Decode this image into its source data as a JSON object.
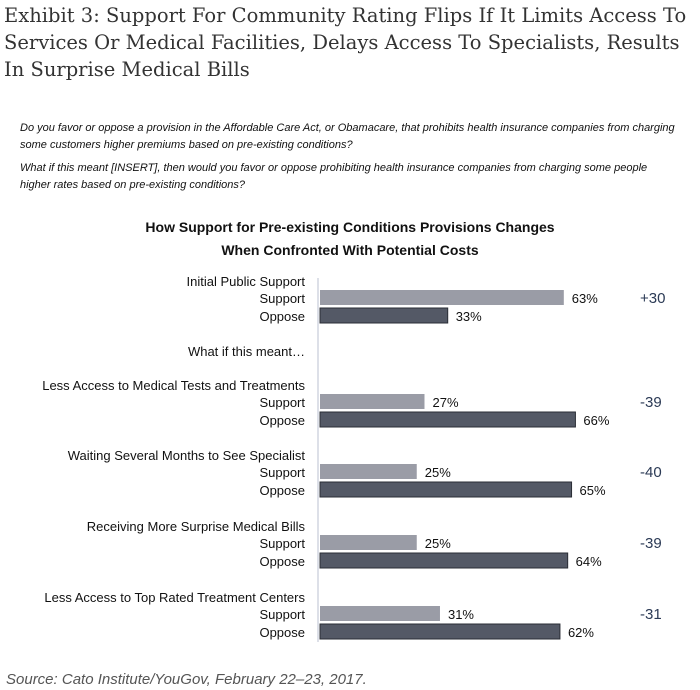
{
  "header": {
    "title": "Exhibit 3: Support For Community Rating Flips If It Limits Access To Services Or Medical Facilities, Delays Access To Specialists, Results In Surprise Medical Bills",
    "question1": "Do you favor or oppose a provision in the Affordable Care Act, or Obamacare, that prohibits health insurance companies from charging some customers higher premiums based on pre-existing conditions?",
    "question2": "What if this meant [INSERT], then would you favor or oppose prohibiting health insurance companies from charging some people higher rates based on pre-existing conditions?"
  },
  "chart_data": {
    "type": "bar",
    "orientation": "horizontal",
    "title_line1": "How Support for Pre-existing Conditions Provisions Changes",
    "title_line2": "When Confronted With Potential Costs",
    "subheading": "What if this meant…",
    "series_names": [
      "Support",
      "Oppose"
    ],
    "colors": {
      "Support": "#9a9ca6",
      "Oppose": "#545966",
      "net": "#2b3a55"
    },
    "groups": [
      {
        "label": "Initial Public Support",
        "support": 63,
        "oppose": 33,
        "net": "+30"
      },
      {
        "label": "Less Access to Medical Tests and Treatments",
        "support": 27,
        "oppose": 66,
        "net": "-39"
      },
      {
        "label": "Waiting Several Months to See Specialist",
        "support": 25,
        "oppose": 65,
        "net": "-40"
      },
      {
        "label": "Receiving More Surprise Medical Bills",
        "support": 25,
        "oppose": 64,
        "net": "-39"
      },
      {
        "label": "Less Access to Top Rated Treatment Centers",
        "support": 31,
        "oppose": 62,
        "net": "-31"
      }
    ],
    "unit": "%",
    "xlim": [
      0,
      100
    ]
  },
  "footer": {
    "source": "Source: Cato Institute/YouGov, February 22–23, 2017."
  }
}
